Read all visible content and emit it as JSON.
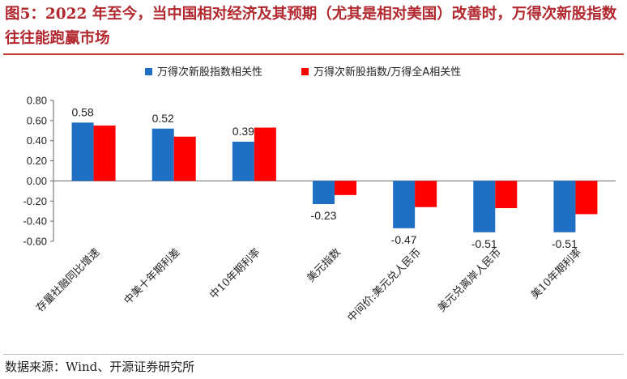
{
  "page": {
    "title": "图5：2022 年至今，当中国相对经济及其预期（尤其是相对美国）改善时，万得次新股指数往往能跑赢市场",
    "source": "数据来源：Wind、开源证券研究所"
  },
  "colors": {
    "title": "#b1282e",
    "series_blue": "#1f6fc5",
    "series_red": "#ff0000"
  },
  "chart_data": {
    "type": "bar",
    "title": "",
    "xlabel": "",
    "ylabel": "",
    "categories": [
      "存量社融同比增速",
      "中美十年期利差",
      "中10年期利率",
      "美元指数",
      "中间价:美元兑人民币",
      "美元兑离岸人民币",
      "美10年期利率"
    ],
    "series": [
      {
        "name": "万得次新股指数相关性",
        "color": "#1f6fc5",
        "values": [
          0.58,
          0.52,
          0.39,
          -0.23,
          -0.47,
          -0.51,
          -0.51
        ],
        "show_labels": true
      },
      {
        "name": "万得次新股指数/万得全A相关性",
        "color": "#ff0000",
        "values": [
          0.55,
          0.44,
          0.53,
          -0.14,
          -0.26,
          -0.27,
          -0.33
        ],
        "show_labels": false
      }
    ],
    "ylim": [
      -0.6,
      0.8
    ],
    "yticks": [
      "0.80",
      "0.60",
      "0.40",
      "0.20",
      "0.00",
      "-0.20",
      "-0.40",
      "-0.60"
    ],
    "legend_position": "top",
    "grid": false
  }
}
